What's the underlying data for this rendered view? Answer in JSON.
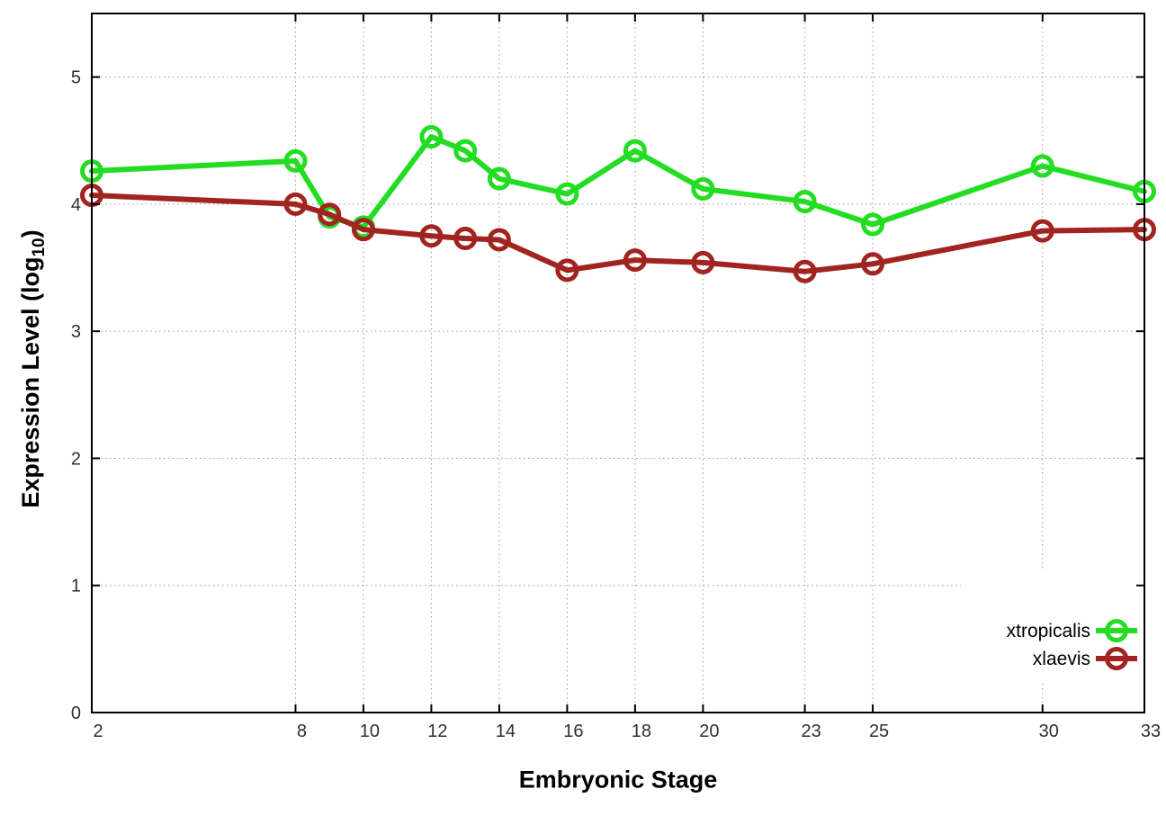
{
  "chart_data": {
    "type": "line",
    "title": "",
    "xlabel": "Embryonic Stage",
    "ylabel": {
      "pre": "Expression Level (log",
      "sub": "10",
      "post": ")"
    },
    "x": [
      2,
      8,
      9,
      10,
      12,
      13,
      14,
      16,
      18,
      20,
      23,
      25,
      30,
      33
    ],
    "xticks": [
      2,
      8,
      10,
      12,
      14,
      16,
      18,
      20,
      23,
      25,
      30,
      33
    ],
    "yticks": [
      0,
      1,
      2,
      3,
      4,
      5
    ],
    "xlim": [
      2,
      33
    ],
    "ylim": [
      0,
      5.5
    ],
    "grid": true,
    "legend_position": "inside-bottom-right",
    "series": [
      {
        "name": "xtropicalis",
        "color": "#22dd22",
        "marker": "open-circle",
        "values": [
          4.26,
          4.34,
          3.9,
          3.82,
          4.53,
          4.42,
          4.2,
          4.08,
          4.42,
          4.12,
          4.02,
          3.84,
          4.3,
          4.1
        ]
      },
      {
        "name": "xlaevis",
        "color": "#a12420",
        "marker": "open-circle",
        "values": [
          4.07,
          4.0,
          3.92,
          3.8,
          3.75,
          3.73,
          3.72,
          3.48,
          3.56,
          3.54,
          3.47,
          3.53,
          3.79,
          3.8
        ]
      }
    ],
    "style": {
      "border_color": "#000000",
      "grid_color": "#9a9a9a",
      "tick_label_color": "#303030",
      "background": "#ffffff"
    }
  }
}
